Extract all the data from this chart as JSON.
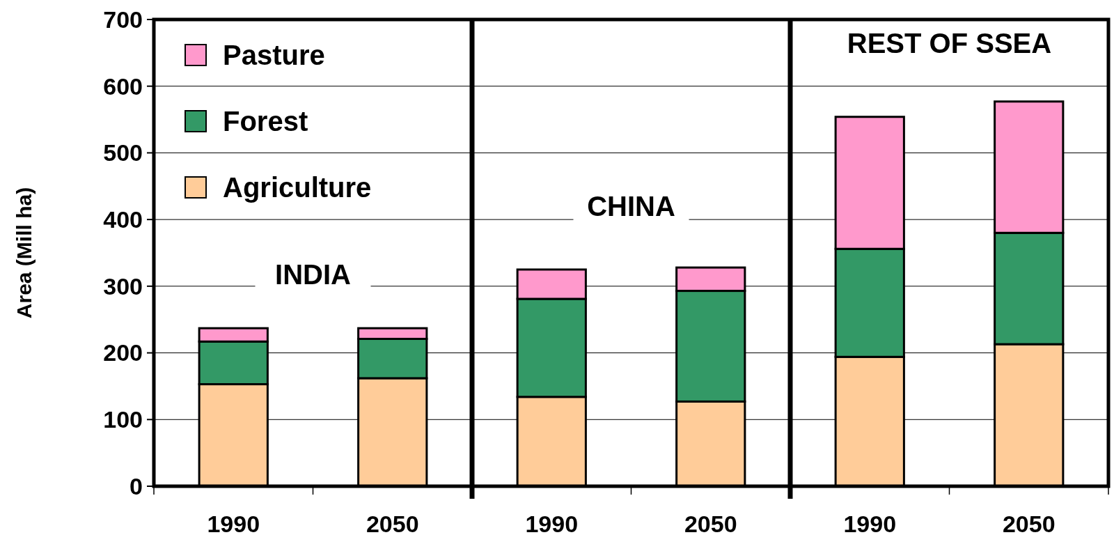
{
  "chart_data": {
    "type": "bar",
    "stacked": true,
    "ylabel": "Area (Mill ha)",
    "categories": [
      "1990",
      "2050",
      "1990",
      "2050",
      "1990",
      "2050"
    ],
    "series": [
      {
        "name": "Agriculture",
        "color": "#ffcc99",
        "values": [
          153,
          162,
          134,
          127,
          194,
          213
        ]
      },
      {
        "name": "Forest",
        "color": "#339966",
        "values": [
          64,
          59,
          147,
          166,
          162,
          167
        ]
      },
      {
        "name": "Pasture",
        "color": "#ff99cc",
        "values": [
          20,
          16,
          44,
          35,
          198,
          197
        ]
      }
    ],
    "ylim": [
      0,
      700
    ],
    "yticks": [
      0,
      100,
      200,
      300,
      400,
      500,
      600,
      700
    ],
    "grid": "y",
    "legend": "top left",
    "annotations": [
      "INDIA",
      "CHINA",
      "REST OF SSEA"
    ]
  }
}
